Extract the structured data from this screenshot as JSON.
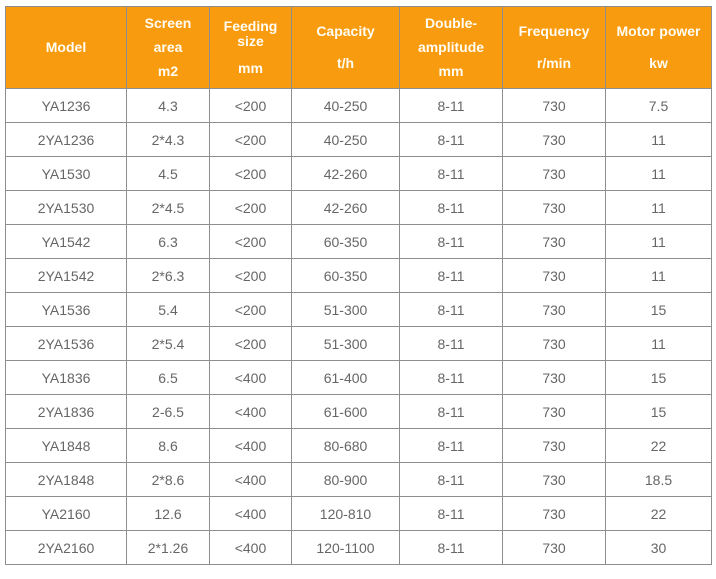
{
  "table": {
    "header": {
      "columns": [
        {
          "id": "model",
          "lines": [
            "Model"
          ]
        },
        {
          "id": "screen-area",
          "lines": [
            "Screen",
            "area",
            "m2"
          ]
        },
        {
          "id": "feeding-size",
          "lines": [
            "Feeding size",
            "mm"
          ]
        },
        {
          "id": "capacity",
          "lines": [
            "Capacity",
            "t/h"
          ]
        },
        {
          "id": "double-amplitude",
          "lines": [
            "Double-",
            "amplitude",
            "mm"
          ]
        },
        {
          "id": "frequency",
          "lines": [
            "Frequency",
            "r/min"
          ]
        },
        {
          "id": "motor-power",
          "lines": [
            "Motor power",
            "kw"
          ]
        }
      ]
    },
    "rows": [
      [
        "YA1236",
        "4.3",
        "<200",
        "40-250",
        "8-11",
        "730",
        "7.5"
      ],
      [
        "2YA1236",
        "2*4.3",
        "<200",
        "40-250",
        "8-11",
        "730",
        "11"
      ],
      [
        "YA1530",
        "4.5",
        "<200",
        "42-260",
        "8-11",
        "730",
        "11"
      ],
      [
        "2YA1530",
        "2*4.5",
        "<200",
        "42-260",
        "8-11",
        "730",
        "11"
      ],
      [
        "YA1542",
        "6.3",
        "<200",
        "60-350",
        "8-11",
        "730",
        "11"
      ],
      [
        "2YA1542",
        "2*6.3",
        "<200",
        "60-350",
        "8-11",
        "730",
        "11"
      ],
      [
        "YA1536",
        "5.4",
        "<200",
        "51-300",
        "8-11",
        "730",
        "15"
      ],
      [
        "2YA1536",
        "2*5.4",
        "<200",
        "51-300",
        "8-11",
        "730",
        "11"
      ],
      [
        "YA1836",
        "6.5",
        "<400",
        "61-400",
        "8-11",
        "730",
        "15"
      ],
      [
        "2YA1836",
        "2-6.5",
        "<400",
        "61-600",
        "8-11",
        "730",
        "15"
      ],
      [
        "YA1848",
        "8.6",
        "<400",
        "80-680",
        "8-11",
        "730",
        "22"
      ],
      [
        "2YA1848",
        "2*8.6",
        "<400",
        "80-900",
        "8-11",
        "730",
        "18.5"
      ],
      [
        "YA2160",
        "12.6",
        "<400",
        "120-810",
        "8-11",
        "730",
        "22"
      ],
      [
        "2YA2160",
        "2*1.26",
        "<400",
        "120-1100",
        "8-11",
        "730",
        "30"
      ]
    ]
  },
  "colors": {
    "header_bg": "#F99B0E",
    "header_text": "#FFFDF4",
    "body_text": "#666666",
    "border": "#8E8E8E",
    "row_bg": "#FFFFFF"
  },
  "chart_data": {
    "type": "table",
    "title": "",
    "columns": [
      "Model",
      "Screen area m2",
      "Feeding size mm",
      "Capacity t/h",
      "Double-amplitude mm",
      "Frequency r/min",
      "Motor power kw"
    ],
    "rows": [
      [
        "YA1236",
        "4.3",
        "<200",
        "40-250",
        "8-11",
        "730",
        "7.5"
      ],
      [
        "2YA1236",
        "2*4.3",
        "<200",
        "40-250",
        "8-11",
        "730",
        "11"
      ],
      [
        "YA1530",
        "4.5",
        "<200",
        "42-260",
        "8-11",
        "730",
        "11"
      ],
      [
        "2YA1530",
        "2*4.5",
        "<200",
        "42-260",
        "8-11",
        "730",
        "11"
      ],
      [
        "YA1542",
        "6.3",
        "<200",
        "60-350",
        "8-11",
        "730",
        "11"
      ],
      [
        "2YA1542",
        "2*6.3",
        "<200",
        "60-350",
        "8-11",
        "730",
        "11"
      ],
      [
        "YA1536",
        "5.4",
        "<200",
        "51-300",
        "8-11",
        "730",
        "15"
      ],
      [
        "2YA1536",
        "2*5.4",
        "<200",
        "51-300",
        "8-11",
        "730",
        "11"
      ],
      [
        "YA1836",
        "6.5",
        "<400",
        "61-400",
        "8-11",
        "730",
        "15"
      ],
      [
        "2YA1836",
        "2-6.5",
        "<400",
        "61-600",
        "8-11",
        "730",
        "15"
      ],
      [
        "YA1848",
        "8.6",
        "<400",
        "80-680",
        "8-11",
        "730",
        "22"
      ],
      [
        "2YA1848",
        "2*8.6",
        "<400",
        "80-900",
        "8-11",
        "730",
        "18.5"
      ],
      [
        "YA2160",
        "12.6",
        "<400",
        "120-810",
        "8-11",
        "730",
        "22"
      ],
      [
        "2YA2160",
        "2*1.26",
        "<400",
        "120-1100",
        "8-11",
        "730",
        "30"
      ]
    ]
  }
}
